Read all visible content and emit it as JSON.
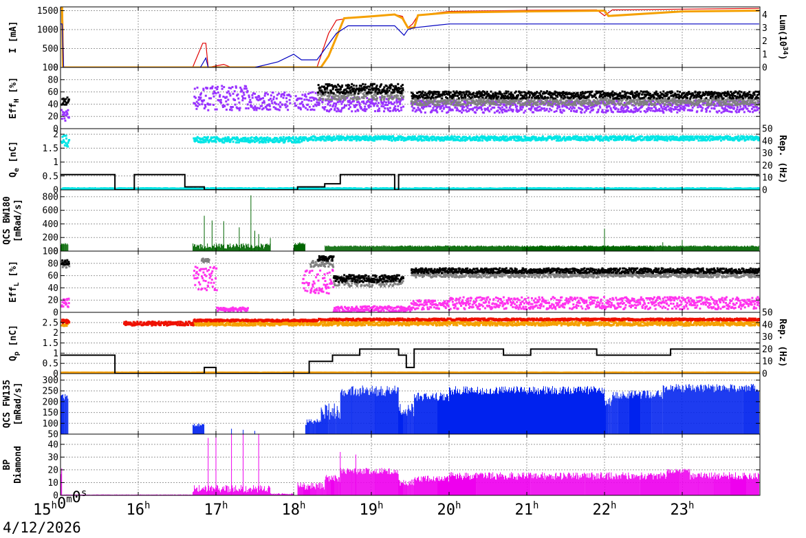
{
  "date_label": "4/12/2026",
  "chart_data": [
    {
      "id": "beam-current",
      "type": "line",
      "ylabel": "I [mA]",
      "ylabel_right_main": "Lum(10",
      "ylabel_right_sup": "34",
      "ylabel_right_tail": ")",
      "ylim": [
        0,
        1600
      ],
      "yticks": [
        "1500",
        "1000",
        "500",
        "0"
      ],
      "ytick_values": [
        1500,
        1000,
        500,
        0
      ],
      "yticks_right": [
        "4",
        "3",
        "2",
        "1",
        "0"
      ],
      "ytick_right_values": [
        4,
        3,
        2,
        1,
        0
      ],
      "ylim_right": [
        0,
        4.6
      ],
      "series": [
        {
          "color": "#e00000",
          "x": [
            15.0,
            15.02,
            15.03,
            15.04,
            16.7,
            16.83,
            16.87,
            16.9,
            17.1,
            17.2,
            17.5,
            18.3,
            18.45,
            18.55,
            18.65,
            18.7,
            19.0,
            19.3,
            19.4,
            19.47,
            19.53,
            19.6,
            20.0,
            21.0,
            21.9,
            22.0,
            22.1,
            23.0,
            23.99
          ],
          "y": [
            1550,
            1550,
            1300,
            0,
            0,
            640,
            640,
            0,
            80,
            0,
            0,
            0,
            900,
            1250,
            1280,
            1320,
            1350,
            1400,
            1350,
            1050,
            1150,
            1380,
            1480,
            1510,
            1520,
            1370,
            1520,
            1540,
            1560
          ]
        },
        {
          "color": "#f5a000",
          "x": [
            15.0,
            15.02,
            15.03,
            18.35,
            18.45,
            18.55,
            18.65,
            19.0,
            19.3,
            19.4,
            19.47,
            19.55,
            19.6,
            20.0,
            21.0,
            22.0,
            22.05,
            23.0,
            23.99
          ],
          "y": [
            1580,
            1580,
            0,
            0,
            300,
            800,
            1300,
            1350,
            1400,
            1300,
            1050,
            1050,
            1380,
            1450,
            1480,
            1500,
            1360,
            1480,
            1500
          ]
        },
        {
          "color": "#0000c0",
          "x": [
            15.0,
            15.02,
            15.04,
            16.8,
            16.87,
            16.9,
            17.5,
            17.8,
            18.0,
            18.1,
            18.3,
            18.55,
            18.7,
            19.3,
            19.42,
            19.47,
            19.55,
            20.0,
            21.0,
            22.0,
            23.0,
            23.99
          ],
          "y": [
            1150,
            1150,
            0,
            0,
            250,
            0,
            0,
            150,
            350,
            200,
            200,
            900,
            1100,
            1100,
            850,
            1000,
            1050,
            1150,
            1150,
            1150,
            1150,
            1150
          ]
        }
      ]
    },
    {
      "id": "eff-h",
      "type": "scatter",
      "ylabel": "Eff",
      "ylabel_sub": "H",
      "ylabel_tail": " [%]",
      "ylim": [
        0,
        100
      ],
      "yticks": [
        "100",
        "80",
        "60",
        "40",
        "20",
        "0"
      ],
      "ytick_values": [
        100,
        80,
        60,
        40,
        20,
        0
      ],
      "series": [
        {
          "color": "#9933ff",
          "segments": [
            [
              15.0,
              15.1,
              22,
              10
            ],
            [
              16.7,
              17.4,
              50,
              20
            ],
            [
              17.4,
              17.95,
              45,
              15
            ],
            [
              18.0,
              18.35,
              45,
              15
            ],
            [
              18.35,
              19.4,
              40,
              12
            ],
            [
              19.5,
              23.99,
              36,
              10
            ]
          ]
        },
        {
          "color": "#808080",
          "segments": [
            [
              18.3,
              19.4,
              55,
              8
            ],
            [
              19.5,
              23.99,
              44,
              6
            ]
          ]
        },
        {
          "color": "#000000",
          "segments": [
            [
              15.0,
              15.1,
              45,
              6
            ],
            [
              18.3,
              19.4,
              65,
              8
            ],
            [
              19.5,
              23.99,
              55,
              6
            ]
          ]
        }
      ]
    },
    {
      "id": "charge-e",
      "type": "scatter",
      "ylabel": "Q",
      "ylabel_sub": "e",
      "ylabel_tail": " [nC]",
      "ylabel_right": "Rep. (Hz)",
      "ylim": [
        0,
        2.2
      ],
      "yticks": [
        "2",
        "1.5",
        "1",
        "0.5",
        "0"
      ],
      "ytick_values": [
        2,
        1.5,
        1,
        0.5,
        0
      ],
      "yticks_right": [
        "50",
        "40",
        "30",
        "20",
        "10",
        "0"
      ],
      "ytick_right_values": [
        50,
        40,
        30,
        20,
        10,
        0
      ],
      "ylim_right": [
        0,
        50
      ],
      "series": [
        {
          "color": "#00e5e5",
          "segments": [
            [
              15.0,
              15.1,
              1.75,
              0.2
            ],
            [
              16.7,
              18.2,
              1.8,
              0.1
            ],
            [
              18.2,
              23.99,
              1.85,
              0.08
            ]
          ]
        },
        {
          "color": "#00e5e5",
          "segments": [
            [
              15.0,
              23.99,
              0.04,
              0.02
            ]
          ]
        }
      ],
      "steps": {
        "color": "#000000",
        "x": [
          15.0,
          15.7,
          15.7,
          15.95,
          15.95,
          16.6,
          16.6,
          16.85,
          16.85,
          16.9,
          16.9,
          18.05,
          18.05,
          18.15,
          18.15,
          18.4,
          18.4,
          18.6,
          18.6,
          19.3,
          19.3,
          19.35,
          19.35,
          23.99
        ],
        "y": [
          12.5,
          12.5,
          0,
          0,
          12.5,
          12.5,
          2.5,
          2.5,
          0,
          0,
          0,
          0,
          2.5,
          2.5,
          2.5,
          2.5,
          5,
          5,
          12.5,
          12.5,
          0,
          0,
          12.5,
          12.5
        ]
      }
    },
    {
      "id": "qcs-bw180",
      "type": "bar",
      "ylabel": "QCS BW180",
      "ylabel2": "[mRad/s]",
      "ylim": [
        0,
        900
      ],
      "yticks": [
        "800",
        "600",
        "400",
        "200",
        "0"
      ],
      "ytick_values": [
        800,
        600,
        400,
        200,
        0
      ],
      "series": [
        {
          "color": "#006600",
          "segments": [
            [
              15.0,
              15.1,
              100,
              30
            ],
            [
              16.7,
              17.7,
              60,
              80
            ],
            [
              18.0,
              18.15,
              100,
              40
            ],
            [
              18.4,
              23.99,
              70,
              20
            ]
          ],
          "spikes": [
            [
              16.85,
              520
            ],
            [
              16.95,
              450
            ],
            [
              17.1,
              440
            ],
            [
              17.3,
              350
            ],
            [
              17.45,
              820
            ],
            [
              17.5,
              300
            ],
            [
              17.55,
              250
            ],
            [
              17.7,
              190
            ],
            [
              22.0,
              330
            ],
            [
              22.75,
              130
            ],
            [
              23.0,
              160
            ]
          ]
        }
      ]
    },
    {
      "id": "eff-l",
      "type": "scatter",
      "ylabel": "Eff",
      "ylabel_sub": "L",
      "ylabel_tail": " [%]",
      "ylim": [
        0,
        100
      ],
      "yticks": [
        "100",
        "80",
        "60",
        "40",
        "20",
        "0"
      ],
      "ytick_values": [
        100,
        80,
        60,
        40,
        20,
        0
      ],
      "series": [
        {
          "color": "#ff33ee",
          "segments": [
            [
              15.0,
              15.1,
              15,
              8
            ],
            [
              16.7,
              17.0,
              55,
              20
            ],
            [
              17.0,
              17.4,
              5,
              3
            ],
            [
              18.1,
              18.5,
              50,
              20
            ],
            [
              18.5,
              19.5,
              5,
              5
            ],
            [
              19.5,
              20.0,
              12,
              8
            ],
            [
              20.0,
              23.99,
              15,
              10
            ]
          ]
        },
        {
          "color": "#808080",
          "segments": [
            [
              15.0,
              15.1,
              78,
              5
            ],
            [
              16.8,
              16.9,
              85,
              3
            ],
            [
              18.2,
              18.5,
              80,
              6
            ],
            [
              18.5,
              19.4,
              50,
              8
            ],
            [
              19.5,
              23.99,
              62,
              5
            ]
          ]
        },
        {
          "color": "#000000",
          "segments": [
            [
              15.0,
              15.1,
              82,
              4
            ],
            [
              18.3,
              18.5,
              88,
              4
            ],
            [
              18.5,
              19.4,
              55,
              6
            ],
            [
              19.5,
              23.99,
              68,
              4
            ]
          ]
        }
      ]
    },
    {
      "id": "charge-p",
      "type": "scatter",
      "ylabel": "Q",
      "ylabel_sub": "p",
      "ylabel_tail": " [nC]",
      "ylabel_right": "Rep. (Hz)",
      "ylim": [
        0,
        3.0
      ],
      "yticks": [
        "2.5",
        "2",
        "1.5",
        "1",
        "0.5",
        "0"
      ],
      "ytick_values": [
        2.5,
        2,
        1.5,
        1,
        0.5,
        0
      ],
      "yticks_right": [
        "50",
        "40",
        "30",
        "20",
        "10",
        "0"
      ],
      "ytick_right_values": [
        50,
        40,
        30,
        20,
        10,
        0
      ],
      "ylim_right": [
        0,
        50
      ],
      "series": [
        {
          "color": "#f5a000",
          "segments": [
            [
              15.0,
              15.1,
              2.45,
              0.12
            ],
            [
              16.7,
              18.3,
              2.45,
              0.1
            ],
            [
              18.3,
              23.99,
              2.45,
              0.1
            ]
          ]
        },
        {
          "color": "#ee1100",
          "segments": [
            [
              15.0,
              15.1,
              2.55,
              0.1
            ],
            [
              15.8,
              16.7,
              2.45,
              0.1
            ],
            [
              16.7,
              18.3,
              2.6,
              0.05
            ],
            [
              18.3,
              23.99,
              2.65,
              0.05
            ]
          ]
        },
        {
          "color": "#f5a000",
          "segments": [
            [
              15.0,
              23.99,
              0.04,
              0.01
            ]
          ]
        }
      ],
      "steps": {
        "color": "#000000",
        "x": [
          15.0,
          15.7,
          15.7,
          16.85,
          16.85,
          17.0,
          17.0,
          18.2,
          18.2,
          18.5,
          18.5,
          18.85,
          18.85,
          19.35,
          19.35,
          19.45,
          19.45,
          19.55,
          19.55,
          20.7,
          20.7,
          21.05,
          21.05,
          21.9,
          21.9,
          22.85,
          22.85,
          23.99
        ],
        "y": [
          15,
          15,
          0,
          0,
          5,
          5,
          0,
          0,
          10,
          10,
          15,
          15,
          20,
          20,
          15,
          15,
          5,
          5,
          20,
          20,
          15,
          15,
          20,
          20,
          15,
          15,
          20,
          20
        ]
      }
    },
    {
      "id": "qcs-fw135",
      "type": "bar",
      "ylabel": "QCS FW135",
      "ylabel2": "[mRad/s]",
      "ylim": [
        50,
        330
      ],
      "yticks": [
        "300",
        "250",
        "200",
        "150",
        "100",
        "50"
      ],
      "ytick_values": [
        300,
        250,
        200,
        150,
        100,
        50
      ],
      "series": [
        {
          "color": "#0022ee",
          "segments": [
            [
              15.0,
              15.1,
              220,
              40
            ],
            [
              16.7,
              16.85,
              90,
              15
            ],
            [
              18.15,
              18.35,
              100,
              30
            ],
            [
              18.35,
              18.6,
              140,
              80
            ],
            [
              18.6,
              19.35,
              240,
              50
            ],
            [
              19.35,
              19.55,
              150,
              60
            ],
            [
              19.55,
              20.0,
              215,
              40
            ],
            [
              20.0,
              22.0,
              245,
              40
            ],
            [
              22.0,
              22.1,
              190,
              40
            ],
            [
              22.1,
              22.75,
              225,
              40
            ],
            [
              22.75,
              23.99,
              255,
              40
            ]
          ],
          "spikes": [
            [
              17.2,
              75
            ],
            [
              17.35,
              70
            ],
            [
              17.5,
              65
            ]
          ]
        }
      ]
    },
    {
      "id": "bp-diamond",
      "type": "bar",
      "ylabel": "BP",
      "ylabel2": "Diamond",
      "ylim": [
        0,
        48
      ],
      "yticks": [
        "40",
        "30",
        "20",
        "10",
        "0"
      ],
      "ytick_values": [
        40,
        30,
        20,
        10,
        0
      ],
      "xticks": [
        "15h0m0s",
        "16h",
        "17h",
        "18h",
        "19h",
        "20h",
        "21h",
        "22h",
        "23h"
      ],
      "xtick_values": [
        15,
        16,
        17,
        18,
        19,
        20,
        21,
        22,
        23
      ],
      "xlim": [
        15.0,
        24.0
      ],
      "series": [
        {
          "color": "#ee00ee",
          "segments": [
            [
              15.0,
              15.02,
              18,
              6
            ],
            [
              15.02,
              16.7,
              0.5,
              0.3
            ],
            [
              16.7,
              17.7,
              4,
              6
            ],
            [
              17.7,
              18.0,
              1,
              1
            ],
            [
              18.05,
              18.4,
              6,
              6
            ],
            [
              18.4,
              18.6,
              12,
              6
            ],
            [
              18.6,
              19.35,
              18,
              5
            ],
            [
              19.35,
              19.55,
              9,
              5
            ],
            [
              19.55,
              20.0,
              12,
              5
            ],
            [
              20.0,
              22.8,
              14,
              6
            ],
            [
              22.8,
              23.1,
              18,
              4
            ],
            [
              23.1,
              23.99,
              14,
              6
            ]
          ],
          "spikes": [
            [
              16.9,
              45
            ],
            [
              17.0,
              48
            ],
            [
              17.2,
              48
            ],
            [
              17.35,
              48
            ],
            [
              17.55,
              48
            ],
            [
              18.6,
              34
            ],
            [
              18.8,
              32
            ]
          ]
        }
      ]
    }
  ]
}
